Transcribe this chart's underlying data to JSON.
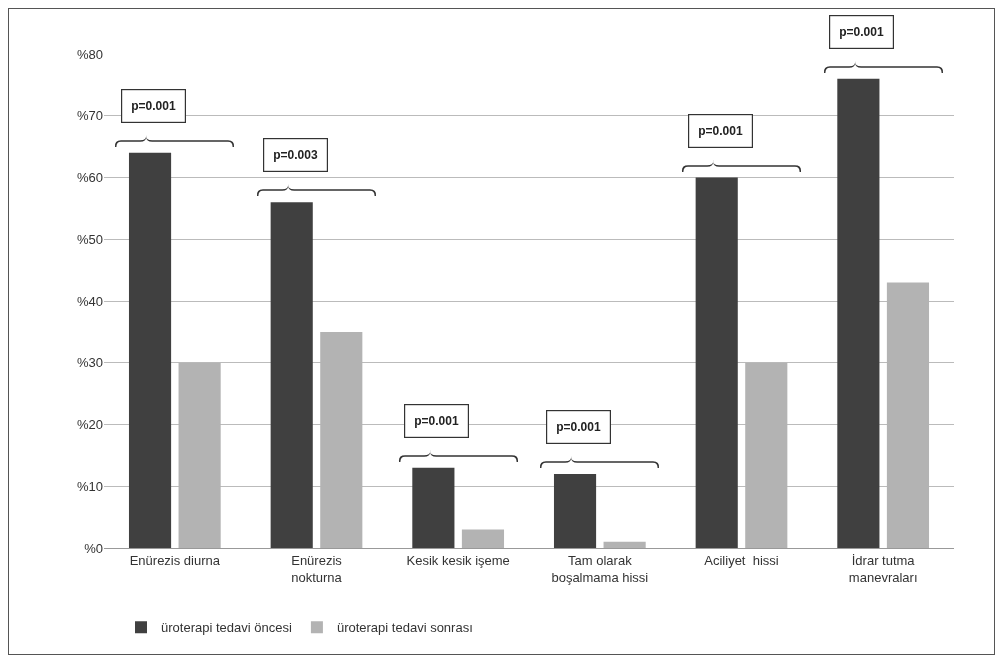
{
  "chart_data": {
    "type": "bar",
    "categories": [
      "Enürezis diurna",
      "Enürezis\nnokturna",
      "Kesik kesik işeme",
      "Tam olarak\nboşalmama hissi",
      "Aciliyet  hissi",
      "İdrar tutma\nmanevraları"
    ],
    "series": [
      {
        "name": "üroterapi tedavi öncesi",
        "color": "#404040",
        "values": [
          64,
          56,
          13,
          12,
          60,
          76
        ]
      },
      {
        "name": "üroterapi tedavi sonrası",
        "color": "#b3b3b3",
        "values": [
          30,
          35,
          3,
          1,
          30,
          43
        ]
      }
    ],
    "ylim": [
      0,
      80
    ],
    "yticks": [
      {
        "value": 0,
        "label": "%0"
      },
      {
        "value": 10,
        "label": "%10"
      },
      {
        "value": 20,
        "label": "%20"
      },
      {
        "value": 30,
        "label": "%30"
      },
      {
        "value": 40,
        "label": "%40"
      },
      {
        "value": 50,
        "label": "%50"
      },
      {
        "value": 60,
        "label": "%60"
      },
      {
        "value": 70,
        "label": "%70"
      },
      {
        "value": 80,
        "label": "%80"
      }
    ],
    "grid": "y",
    "legend": "bottom",
    "annotations": [
      "p=0.001",
      "p=0.003",
      "p=0.001",
      "p=0.001",
      "p=0.001",
      "p=0.001"
    ]
  }
}
